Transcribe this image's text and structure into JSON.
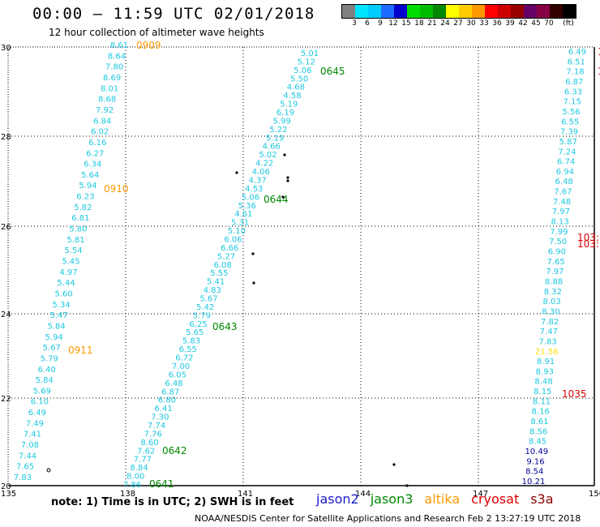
{
  "header": {
    "title": "00:00 — 11:59 UTC 02/01/2018",
    "subtitle": "12 hour collection of altimeter wave heights"
  },
  "colorbar": {
    "colors": [
      "#808080",
      "#00e5ff",
      "#00ccff",
      "#1e6cff",
      "#0000cc",
      "#00dd00",
      "#00bb00",
      "#008800",
      "#ffff00",
      "#ffcc00",
      "#ff9900",
      "#ff0000",
      "#cc0000",
      "#990000",
      "#660066",
      "#880044",
      "#330000",
      "#000000"
    ],
    "labels": [
      "3",
      "6",
      "9",
      "12",
      "15",
      "18",
      "21",
      "24",
      "27",
      "30",
      "33",
      "36",
      "39",
      "42",
      "45",
      "70",
      "(ft)"
    ]
  },
  "map": {
    "lon_ticks": [
      "135",
      "138",
      "141",
      "144",
      "147",
      "150"
    ],
    "lat_ticks": [
      "20",
      "22",
      "24",
      "26",
      "28",
      "30"
    ]
  },
  "tracks": {
    "t0909": {
      "time": "0909",
      "color": "#ff9900"
    },
    "t0910": {
      "time": "0910",
      "color": "#ff9900"
    },
    "t0911": {
      "time": "0911",
      "color": "#ff9900"
    },
    "t0641": {
      "time": "0641",
      "color": "#008800"
    },
    "t0642": {
      "time": "0642",
      "color": "#008800"
    },
    "t0643": {
      "time": "0643",
      "color": "#008800"
    },
    "t0644": {
      "time": "0644",
      "color": "#008800"
    },
    "t0645": {
      "time": "0645",
      "color": "#008800"
    },
    "t1035": {
      "time": "1035",
      "color": "#dd0000"
    },
    "t103a": {
      "time": "103:",
      "color": "#dd0000"
    },
    "t103b": {
      "time": "103:",
      "color": "#dd0000"
    },
    "t1a": {
      "time": "1",
      "color": "#dd0000"
    },
    "t1b": {
      "time": "1",
      "color": "#dd0000"
    }
  },
  "values": {
    "track_altika": [
      "8.61",
      "8.64",
      "7.80",
      "8.69",
      "8.01",
      "8.68",
      "7.92",
      "6.84",
      "6.02",
      "6.16",
      "6.27",
      "6.34",
      "5.64",
      "5.94",
      "6.23",
      "5.82",
      "6.81",
      "5.80",
      "5.81",
      "5.54",
      "5.45",
      "4.97",
      "5.44",
      "5.60",
      "5.34",
      "5.47",
      "5.84",
      "5.94",
      "5.67",
      "5.79",
      "6.40",
      "5.84",
      "5.69",
      "6.10",
      "6.49",
      "7.49",
      "7.41",
      "7.08",
      "7.44",
      "7.65",
      "7.83"
    ],
    "track_jason3": [
      "5.01",
      "5.12",
      "5.06",
      "5.50",
      "4.68",
      "4.58",
      "5.19",
      "6.19",
      "5.99",
      "5.22",
      "5.19",
      "4.66",
      "5.02",
      "4.22",
      "4.06",
      "4.37",
      "4.53",
      "5.06",
      "5.36",
      "4.61",
      "5.31",
      "5.10",
      "6.06",
      "6.66",
      "5.27",
      "6.08",
      "5.55",
      "5.41",
      "4.83",
      "5.67",
      "5.42",
      "5.79",
      "6.25",
      "5.65",
      "5.83",
      "6.55",
      "6.72",
      "7.00",
      "6.05",
      "6.48",
      "6.87",
      "6.80",
      "6.41",
      "7.30",
      "7.74",
      "7.76",
      "8.60",
      "7.62",
      "7.77",
      "8.84",
      "8.00",
      "7.86"
    ],
    "track_cryosat": [
      "6.49",
      "6.51",
      "7.18",
      "6.87",
      "6.33",
      "7.15",
      "5.56",
      "6.55",
      "7.39",
      "5.87",
      "7.24",
      "6.74",
      "6.94",
      "6.48",
      "7.67",
      "7.48",
      "7.97",
      "8.13",
      "7.99",
      "7.50",
      "6.90",
      "7.65",
      "7.97",
      "8.88",
      "8.32",
      "8.03",
      "8.30",
      "7.82",
      "7.47",
      "7.83",
      "21.56",
      "8.91",
      "8.93",
      "8.48",
      "8.15",
      "8.11",
      "8.16",
      "8.61",
      "8.56",
      "8.45",
      "10.49",
      "9.16",
      "8.54",
      "10.21"
    ]
  },
  "footer": {
    "note": "note:  1)  Time is in UTC;  2)  SWH is in feet",
    "legend": [
      {
        "label": "jason2",
        "color": "#1a1acc"
      },
      {
        "label": "jason3",
        "color": "#008800"
      },
      {
        "label": "altika",
        "color": "#ff9900"
      },
      {
        "label": "cryosat",
        "color": "#dd0000"
      },
      {
        "label": "s3a",
        "color": "#8b0000"
      }
    ],
    "credit": "NOAA/NESDIS Center for Satellite Applications and Research     Feb  2 13:27:19 UTC 2018"
  }
}
